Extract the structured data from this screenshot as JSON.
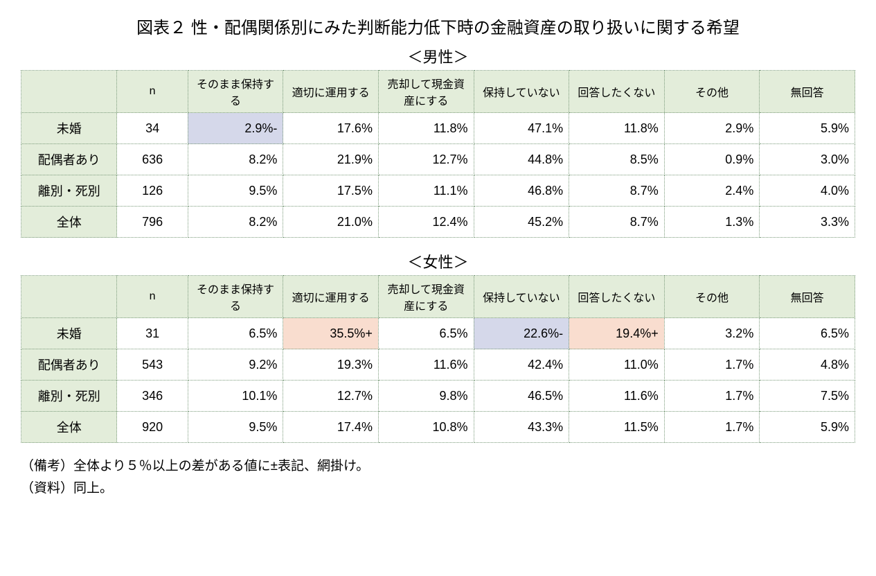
{
  "title": "図表２ 性・配偶関係別にみた判断能力低下時の金融資産の取り扱いに関する希望",
  "subtitles": {
    "male": "＜男性＞",
    "female": "＜女性＞"
  },
  "columns": {
    "n": "n",
    "c1": "そのまま保持する",
    "c2": "適切に運用する",
    "c3": "売却して現金資産にする",
    "c4": "保持していない",
    "c5": "回答したくない",
    "c6": "その他",
    "c7": "無回答"
  },
  "rowlabels": {
    "r1": "未婚",
    "r2": "配偶者あり",
    "r3": "離別・死別",
    "r4": "全体"
  },
  "male": {
    "r1": {
      "n": "34",
      "c1": "2.9%-",
      "c2": "17.6%",
      "c3": "11.8%",
      "c4": "47.1%",
      "c5": "11.8%",
      "c6": "2.9%",
      "c7": "5.9%"
    },
    "r2": {
      "n": "636",
      "c1": "8.2%",
      "c2": "21.9%",
      "c3": "12.7%",
      "c4": "44.8%",
      "c5": "8.5%",
      "c6": "0.9%",
      "c7": "3.0%"
    },
    "r3": {
      "n": "126",
      "c1": "9.5%",
      "c2": "17.5%",
      "c3": "11.1%",
      "c4": "46.8%",
      "c5": "8.7%",
      "c6": "2.4%",
      "c7": "4.0%"
    },
    "r4": {
      "n": "796",
      "c1": "8.2%",
      "c2": "21.0%",
      "c3": "12.4%",
      "c4": "45.2%",
      "c5": "8.7%",
      "c6": "1.3%",
      "c7": "3.3%"
    }
  },
  "female": {
    "r1": {
      "n": "31",
      "c1": "6.5%",
      "c2": "35.5%+",
      "c3": "6.5%",
      "c4": "22.6%-",
      "c5": "19.4%+",
      "c6": "3.2%",
      "c7": "6.5%"
    },
    "r2": {
      "n": "543",
      "c1": "9.2%",
      "c2": "19.3%",
      "c3": "11.6%",
      "c4": "42.4%",
      "c5": "11.0%",
      "c6": "1.7%",
      "c7": "4.8%"
    },
    "r3": {
      "n": "346",
      "c1": "10.1%",
      "c2": "12.7%",
      "c3": "9.8%",
      "c4": "46.5%",
      "c5": "11.6%",
      "c6": "1.7%",
      "c7": "7.5%"
    },
    "r4": {
      "n": "920",
      "c1": "9.5%",
      "c2": "17.4%",
      "c3": "10.8%",
      "c4": "43.3%",
      "c5": "11.5%",
      "c6": "1.7%",
      "c7": "5.9%"
    }
  },
  "highlights": {
    "male": {
      "r1": {
        "c1": "blue"
      }
    },
    "female": {
      "r1": {
        "c2": "orange",
        "c4": "blue",
        "c5": "orange"
      }
    }
  },
  "notes": {
    "line1": "（備考）全体より５％以上の差がある値に±表記、網掛け。",
    "line2": "（資料）同上。"
  },
  "colors": {
    "header_bg": "#e3edda",
    "border": "#7a9a7a",
    "hl_blue": "#d5d8ea",
    "hl_orange": "#f9ddcf",
    "page_bg": "#ffffff"
  }
}
